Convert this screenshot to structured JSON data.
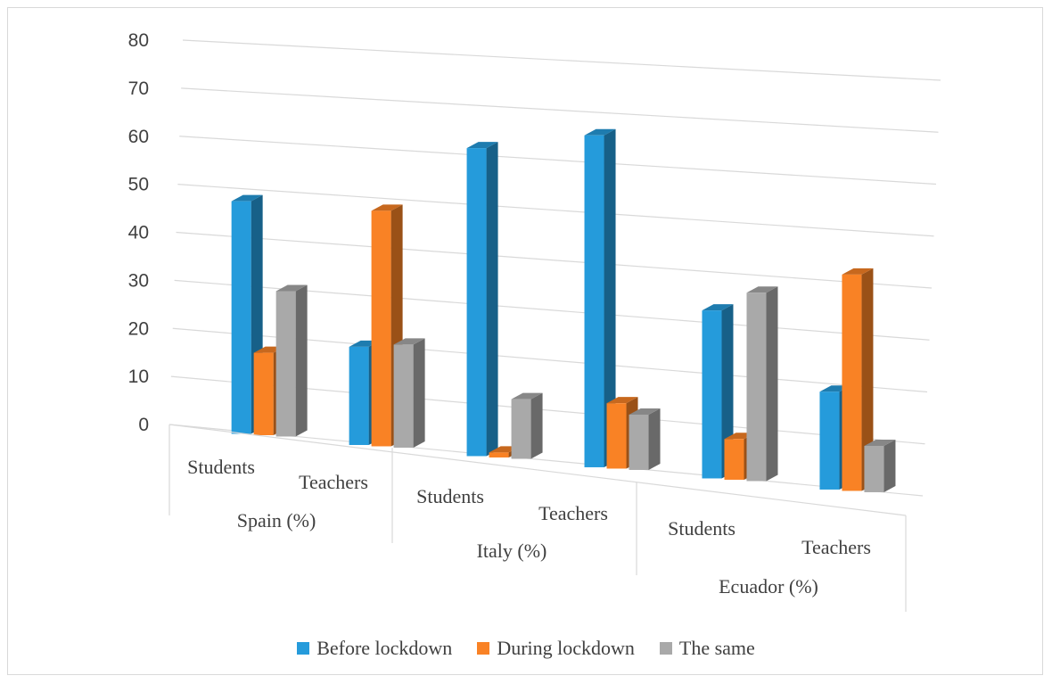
{
  "chart_data": {
    "type": "bar",
    "subtype": "3d-clustered-column",
    "groups": [
      {
        "label": "Spain (%)",
        "categories": [
          "Students",
          "Teachers"
        ]
      },
      {
        "label": "Italy (%)",
        "categories": [
          "Students",
          "Teachers"
        ]
      },
      {
        "label": "Ecuador (%)",
        "categories": [
          "Students",
          "Teachers"
        ]
      }
    ],
    "series": [
      {
        "name": "Before lockdown",
        "color": "#259bdb",
        "values": [
          48,
          20,
          62,
          66,
          33,
          19
        ]
      },
      {
        "name": "During lockdown",
        "color": "#f98225",
        "values": [
          17,
          48,
          1,
          13,
          8,
          42
        ]
      },
      {
        "name": "The same",
        "color": "#a9a9a9",
        "values": [
          30,
          21,
          12,
          11,
          37,
          9
        ]
      }
    ],
    "yticks": [
      0,
      10,
      20,
      30,
      40,
      50,
      60,
      70,
      80
    ],
    "ylim": [
      0,
      80
    ],
    "grid": true,
    "legend_position": "bottom"
  }
}
